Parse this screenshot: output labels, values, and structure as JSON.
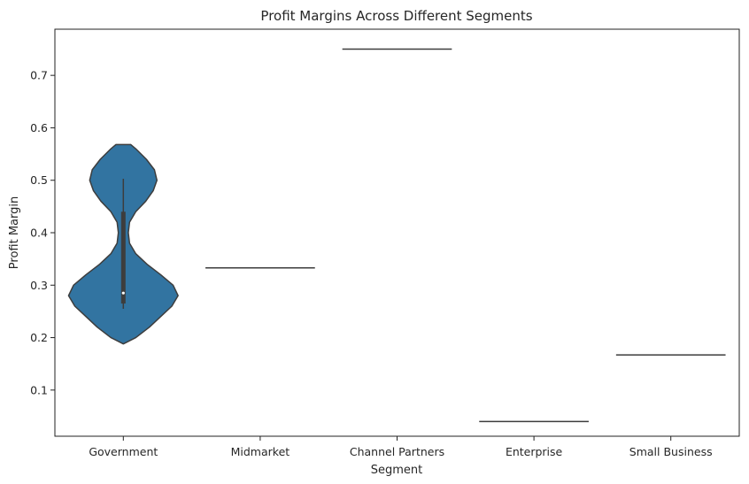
{
  "chart_data": {
    "type": "violin",
    "title": "Profit Margins Across Different Segments",
    "xlabel": "Segment",
    "ylabel": "Profit Margin",
    "categories": [
      "Government",
      "Midmarket",
      "Channel Partners",
      "Enterprise",
      "Small Business"
    ],
    "yticks": [
      "0.1",
      "0.2",
      "0.3",
      "0.4",
      "0.5",
      "0.6",
      "0.7"
    ],
    "ylim": [
      0.012,
      0.788
    ],
    "grid": false,
    "legend": "none",
    "color": "#3274a1",
    "edge_color": "#3d3d3d",
    "series": [
      {
        "category": "Government",
        "density": [
          [
            0.188,
            0.0
          ],
          [
            0.2,
            0.2
          ],
          [
            0.22,
            0.42
          ],
          [
            0.24,
            0.6
          ],
          [
            0.26,
            0.78
          ],
          [
            0.28,
            0.88
          ],
          [
            0.3,
            0.8
          ],
          [
            0.32,
            0.6
          ],
          [
            0.34,
            0.38
          ],
          [
            0.36,
            0.2
          ],
          [
            0.38,
            0.1
          ],
          [
            0.4,
            0.08
          ],
          [
            0.42,
            0.1
          ],
          [
            0.44,
            0.2
          ],
          [
            0.46,
            0.36
          ],
          [
            0.48,
            0.48
          ],
          [
            0.5,
            0.54
          ],
          [
            0.52,
            0.5
          ],
          [
            0.54,
            0.37
          ],
          [
            0.56,
            0.2
          ],
          [
            0.568,
            0.12
          ],
          [
            0.568,
            0.0
          ]
        ],
        "whisker": [
          0.255,
          0.503
        ],
        "box": [
          0.265,
          0.44
        ],
        "median": 0.285
      },
      {
        "category": "Midmarket",
        "value": 0.333
      },
      {
        "category": "Channel Partners",
        "value": 0.75
      },
      {
        "category": "Enterprise",
        "value": 0.04
      },
      {
        "category": "Small Business",
        "value": 0.167
      }
    ]
  }
}
